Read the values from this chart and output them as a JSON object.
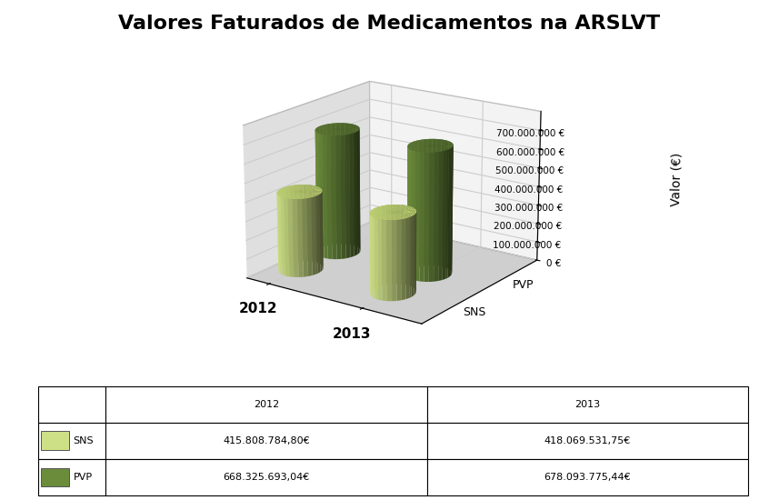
{
  "title": "Valores Faturados de Medicamentos na ARSLVT",
  "ylabel": "Valor (€)",
  "years": [
    "2012",
    "2013"
  ],
  "series": [
    "SNS",
    "PVP"
  ],
  "values": {
    "SNS": [
      415808784.8,
      418069531.75
    ],
    "PVP": [
      668325693.04,
      678093775.44
    ]
  },
  "table_values": {
    "SNS": [
      "415.808.784,80€",
      "418.069.531,75€"
    ],
    "PVP": [
      "668.325.693,04€",
      "678.093.775,44€"
    ]
  },
  "colors": {
    "SNS": "#cde085",
    "PVP": "#6b8c3b"
  },
  "colors_top": {
    "SNS": "#b8cc6e",
    "PVP": "#567030"
  },
  "colors_dark": {
    "SNS": "#a0b050",
    "PVP": "#3a5018"
  },
  "ylim": [
    0,
    800000000
  ],
  "yticks": [
    0,
    100000000,
    200000000,
    300000000,
    400000000,
    500000000,
    600000000,
    700000000
  ],
  "ytick_labels": [
    "0 €",
    "100.000.000 €",
    "200.000.000 €",
    "300.000.000 €",
    "400.000.000 €",
    "500.000.000 €",
    "600.000.000 €",
    "700.000.000 €"
  ],
  "wall_left_color": "#a0a0a0",
  "wall_back_color": "#e8e8e8",
  "floor_color": "#c0c0c0",
  "title_fontsize": 16,
  "label_fontsize": 10
}
